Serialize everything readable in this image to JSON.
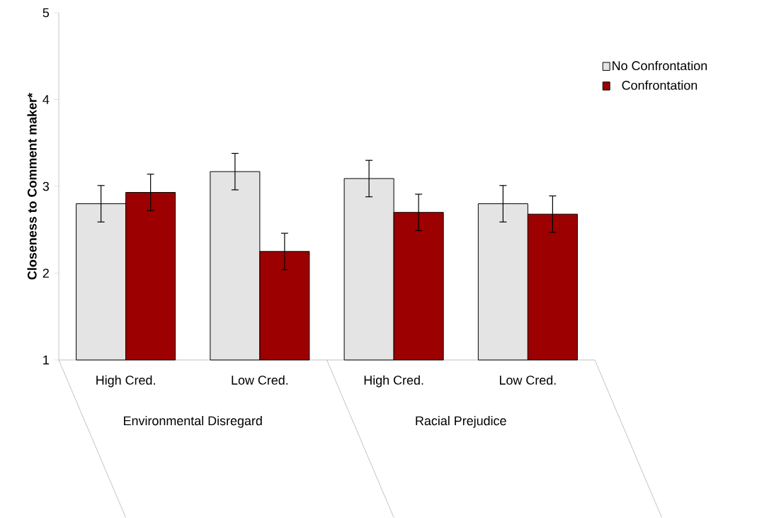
{
  "chart_data": {
    "type": "bar",
    "ylabel": "Closeness to Comment maker*",
    "categories": [
      "High Cred.",
      "Low Cred.",
      "High Cred.",
      "Low Cred."
    ],
    "series": [
      {
        "name": "No Confrontation",
        "color": "#e4e4e4",
        "values": [
          2.8,
          3.17,
          3.09,
          2.8
        ],
        "errors": [
          0.21,
          0.21,
          0.21,
          0.21
        ]
      },
      {
        "name": "Confrontation",
        "color": "#9c0000",
        "values": [
          2.93,
          2.25,
          2.7,
          2.68
        ],
        "errors": [
          0.21,
          0.21,
          0.21,
          0.21
        ]
      }
    ],
    "ylim": [
      1,
      5
    ],
    "yticks": [
      1,
      2,
      3,
      4,
      5
    ],
    "legend": "top right",
    "annotations": [
      "Environmental Disregard",
      "Racial Prejudice"
    ]
  }
}
